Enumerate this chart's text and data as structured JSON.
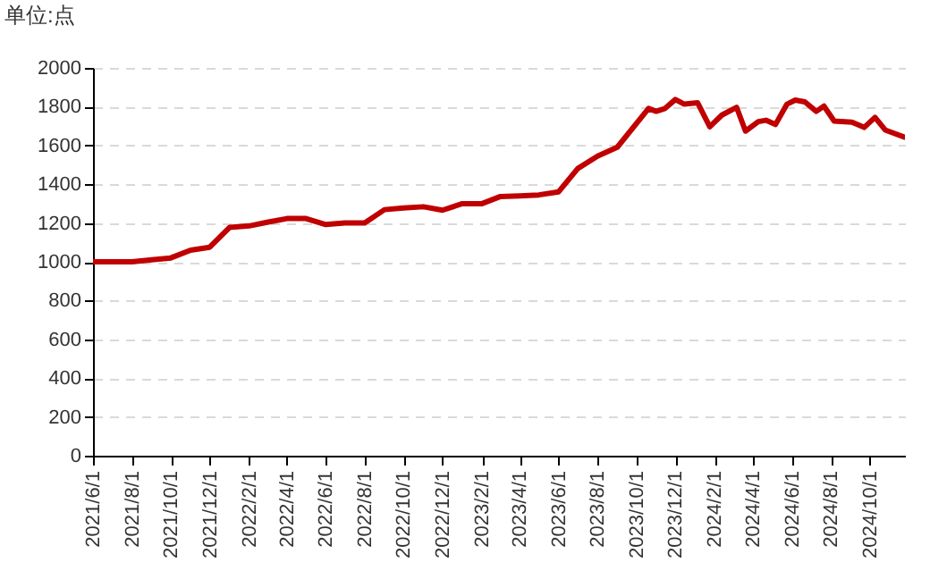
{
  "chart_data": {
    "type": "line",
    "ylabel": "单位:点",
    "grid": "y",
    "legend": false,
    "marker": "none",
    "line_style": "solid",
    "x": [
      "2021-06-01",
      "2021-07-01",
      "2021-08-01",
      "2021-09-01",
      "2021-10-01",
      "2021-11-01",
      "2021-12-01",
      "2022-01-01",
      "2022-02-01",
      "2022-03-01",
      "2022-04-01",
      "2022-05-01",
      "2022-06-01",
      "2022-07-01",
      "2022-08-01",
      "2022-09-01",
      "2022-10-01",
      "2022-11-01",
      "2022-12-01",
      "2023-01-01",
      "2023-02-01",
      "2023-03-01",
      "2023-04-01",
      "2023-05-01",
      "2023-06-01",
      "2023-07-01",
      "2023-08-01",
      "2023-09-01",
      "2023-10-20",
      "2023-11-01",
      "2023-11-15",
      "2023-12-01",
      "2023-12-15",
      "2024-01-05",
      "2024-01-24",
      "2024-02-12",
      "2024-03-06",
      "2024-03-20",
      "2024-04-09",
      "2024-04-21",
      "2024-05-06",
      "2024-05-24",
      "2024-06-06",
      "2024-06-21",
      "2024-07-09",
      "2024-07-21",
      "2024-08-06",
      "2024-09-03",
      "2024-09-22",
      "2024-10-09",
      "2024-10-25",
      "2024-11-24"
    ],
    "series": [
      {
        "color": "#c00000",
        "values": [
          1000,
          1000,
          1000,
          1010,
          1020,
          1060,
          1075,
          1177,
          1185,
          1204,
          1223,
          1223,
          1192,
          1200,
          1200,
          1269,
          1278,
          1284,
          1266,
          1300,
          1300,
          1336,
          1340,
          1345,
          1361,
          1481,
          1545,
          1591,
          1791,
          1776,
          1791,
          1837,
          1813,
          1820,
          1696,
          1757,
          1797,
          1674,
          1723,
          1730,
          1708,
          1813,
          1834,
          1825,
          1776,
          1803,
          1726,
          1720,
          1693,
          1745,
          1680,
          1643
        ]
      }
    ],
    "xlim": [
      "2021-06-01",
      "2024-11-25"
    ],
    "xticks": [
      {
        "value": "2021-06-01",
        "label": "2021/6/1"
      },
      {
        "value": "2021-08-01",
        "label": "2021/8/1"
      },
      {
        "value": "2021-10-01",
        "label": "2021/10/1"
      },
      {
        "value": "2021-12-01",
        "label": "2021/12/1"
      },
      {
        "value": "2022-02-01",
        "label": "2022/2/1"
      },
      {
        "value": "2022-04-01",
        "label": "2022/4/1"
      },
      {
        "value": "2022-06-01",
        "label": "2022/6/1"
      },
      {
        "value": "2022-08-01",
        "label": "2022/8/1"
      },
      {
        "value": "2022-10-01",
        "label": "2022/10/1"
      },
      {
        "value": "2022-12-01",
        "label": "2022/12/1"
      },
      {
        "value": "2023-02-01",
        "label": "2023/2/1"
      },
      {
        "value": "2023-04-01",
        "label": "2023/4/1"
      },
      {
        "value": "2023-06-01",
        "label": "2023/6/1"
      },
      {
        "value": "2023-08-01",
        "label": "2023/8/1"
      },
      {
        "value": "2023-10-01",
        "label": "2023/10/1"
      },
      {
        "value": "2023-12-01",
        "label": "2023/12/1"
      },
      {
        "value": "2024-02-01",
        "label": "2024/2/1"
      },
      {
        "value": "2024-04-01",
        "label": "2024/4/1"
      },
      {
        "value": "2024-06-01",
        "label": "2024/6/1"
      },
      {
        "value": "2024-08-01",
        "label": "2024/8/1"
      },
      {
        "value": "2024-10-01",
        "label": "2024/10/1"
      }
    ],
    "ylim": [
      0,
      2000
    ],
    "yticks": [
      0,
      200,
      400,
      600,
      800,
      1000,
      1200,
      1400,
      1600,
      1800,
      2000
    ]
  }
}
